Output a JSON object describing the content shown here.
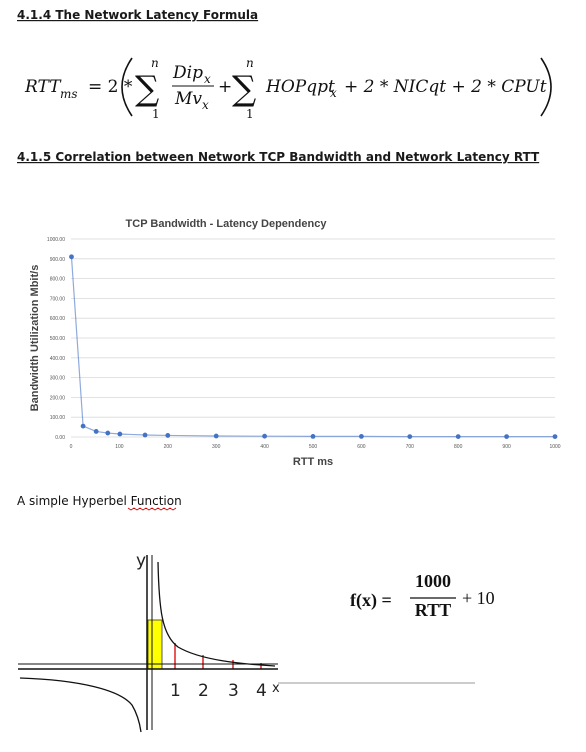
{
  "heading_1": "4.1.4 The Network Latency Formula",
  "formula": {
    "lhs": "RTT",
    "lhs_sub": "ms",
    "equals": "= 2 *",
    "sum_1": {
      "symbol": "∑",
      "upper": "n",
      "lower": "1"
    },
    "numerator": "Dip",
    "numerator_sub": "x",
    "denominator": "Mv",
    "denominator_sub": "x",
    "plus": "+",
    "sum_2": {
      "symbol": "∑",
      "upper": "n",
      "lower": "1"
    },
    "term": "HOPqpt",
    "term_sub": "x",
    "rest": "+ 2 * NICqt + 2 * CPUt"
  },
  "heading_2": "4.1.5 Correlation between Network TCP Bandwidth and Network Latency RTT",
  "chart_data": {
    "type": "line",
    "title": "TCP Bandwidth - Latency Dependency",
    "x_label": "RTT ms",
    "y_label": "Bandwidth Utilization Mbit/s",
    "x": [
      1,
      25,
      52,
      76,
      101,
      153,
      200,
      300,
      400,
      500,
      600,
      700,
      800,
      900,
      1000
    ],
    "series": [
      {
        "name": "Bandwidth",
        "color": "#4472c4",
        "values": [
          910,
          55,
          28,
          20,
          15,
          10,
          8,
          5,
          4,
          3,
          3,
          2,
          2,
          2,
          2
        ]
      }
    ],
    "xlim": [
      0,
      1000
    ],
    "xticks": [
      0,
      100,
      200,
      300,
      400,
      500,
      600,
      700,
      800,
      900,
      1000
    ],
    "ylim": [
      0,
      1000
    ],
    "yticks": [
      {
        "value": 0,
        "label": "0.00"
      },
      {
        "value": 100,
        "label": "100.00"
      },
      {
        "value": 200,
        "label": "200.00"
      },
      {
        "value": 300,
        "label": "300.00"
      },
      {
        "value": 400,
        "label": "400.00"
      },
      {
        "value": 500,
        "label": "500.00"
      },
      {
        "value": 600,
        "label": "600.00"
      },
      {
        "value": 700,
        "label": "700.00"
      },
      {
        "value": 800,
        "label": "800.00"
      },
      {
        "value": 900,
        "label": "900.00"
      },
      {
        "value": 1000,
        "label": "1000.00"
      }
    ],
    "grid": true
  },
  "caption": "A simple Hyperbel Function",
  "sketch": {
    "y_label": "y",
    "x_label": "x",
    "tick_labels": [
      "1",
      "2",
      "3",
      "4"
    ]
  },
  "function": {
    "lhs": "f(x) =",
    "numerator": "1000",
    "denominator": "RTT",
    "rest": "+ 10"
  }
}
